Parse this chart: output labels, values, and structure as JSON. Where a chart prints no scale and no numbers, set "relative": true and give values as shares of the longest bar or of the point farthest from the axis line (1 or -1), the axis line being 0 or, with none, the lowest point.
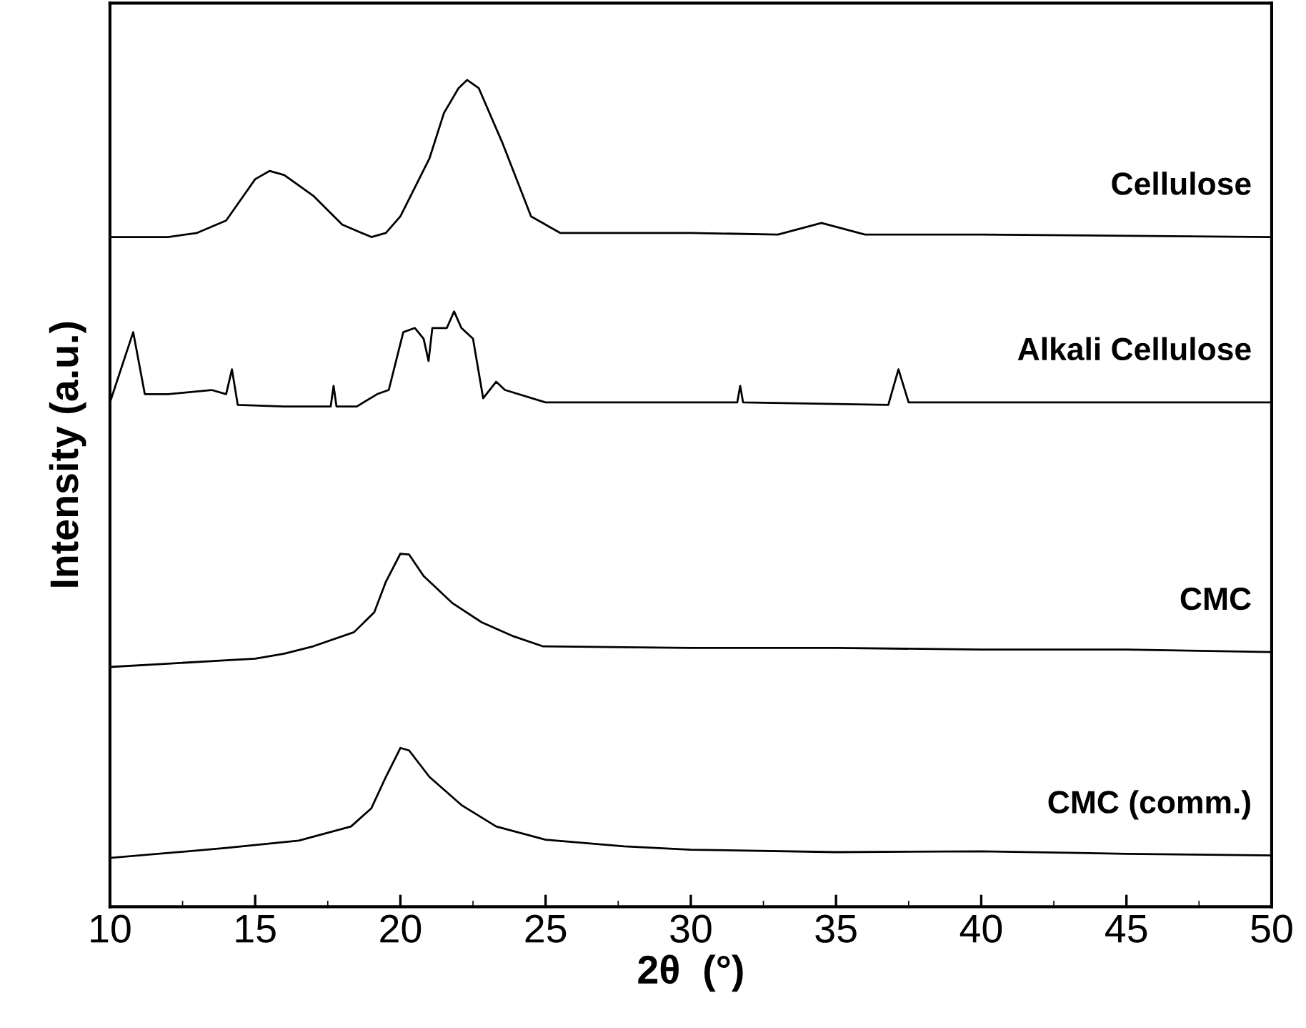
{
  "chart_data": {
    "type": "line",
    "relative": true,
    "xlabel": "2θ  (°)",
    "ylabel": "Intensity (a.u.)",
    "xlim": [
      10,
      50
    ],
    "xticks": [
      10,
      15,
      20,
      25,
      30,
      35,
      40,
      45,
      50
    ],
    "grid": false,
    "legend": false,
    "marker": "none",
    "line_style": "solid",
    "series": [
      {
        "name": "Cellulose",
        "color": "#000000",
        "x": [
          10,
          12,
          13,
          14,
          15,
          15.5,
          16,
          17,
          18,
          19,
          19.5,
          20,
          21,
          21.5,
          22,
          22.3,
          22.7,
          23.5,
          24.5,
          25.5,
          30,
          33,
          34.5,
          36,
          40,
          50
        ],
        "values": [
          0.81,
          0.81,
          0.815,
          0.83,
          0.88,
          0.89,
          0.885,
          0.86,
          0.825,
          0.81,
          0.815,
          0.835,
          0.905,
          0.96,
          0.99,
          1.0,
          0.99,
          0.925,
          0.835,
          0.815,
          0.815,
          0.813,
          0.827,
          0.813,
          0.813,
          0.81
        ]
      },
      {
        "name": "Alkali Cellulose",
        "color": "#000000",
        "x": [
          10,
          10.8,
          11.2,
          12,
          13.5,
          14.0,
          14.2,
          14.4,
          16,
          17,
          17.6,
          17.7,
          17.8,
          18.5,
          19.2,
          19.6,
          20.1,
          20.5,
          20.8,
          20.97,
          21.1,
          21.6,
          21.85,
          22.1,
          22.5,
          22.85,
          23.3,
          23.6,
          25,
          30,
          31.6,
          31.7,
          31.8,
          36.8,
          37.15,
          37.5,
          40,
          45,
          50
        ],
        "values": [
          0.61,
          0.695,
          0.62,
          0.62,
          0.625,
          0.62,
          0.65,
          0.607,
          0.605,
          0.605,
          0.605,
          0.63,
          0.605,
          0.605,
          0.62,
          0.625,
          0.695,
          0.7,
          0.687,
          0.66,
          0.7,
          0.7,
          0.72,
          0.7,
          0.687,
          0.615,
          0.635,
          0.625,
          0.61,
          0.61,
          0.61,
          0.63,
          0.61,
          0.607,
          0.65,
          0.61,
          0.61,
          0.61,
          0.61
        ]
      },
      {
        "name": "CMC",
        "color": "#000000",
        "x": [
          10,
          12,
          14,
          15,
          16,
          17,
          18.4,
          19.1,
          19.5,
          20,
          20.3,
          20.8,
          21.8,
          22.8,
          23.9,
          24.9,
          30,
          35,
          40,
          45,
          50
        ],
        "values": [
          0.29,
          0.294,
          0.298,
          0.3,
          0.306,
          0.315,
          0.332,
          0.356,
          0.393,
          0.427,
          0.426,
          0.4,
          0.367,
          0.344,
          0.327,
          0.315,
          0.313,
          0.313,
          0.311,
          0.311,
          0.308
        ]
      },
      {
        "name": "CMC (comm.)",
        "color": "#000000",
        "x": [
          10,
          14,
          16.5,
          18.3,
          19,
          19.5,
          20,
          20.3,
          21,
          22.1,
          23.3,
          25,
          27.7,
          30,
          35,
          40,
          45,
          50
        ],
        "values": [
          0.059,
          0.071,
          0.08,
          0.097,
          0.119,
          0.157,
          0.192,
          0.189,
          0.157,
          0.123,
          0.097,
          0.081,
          0.073,
          0.069,
          0.066,
          0.067,
          0.064,
          0.062
        ]
      }
    ]
  }
}
